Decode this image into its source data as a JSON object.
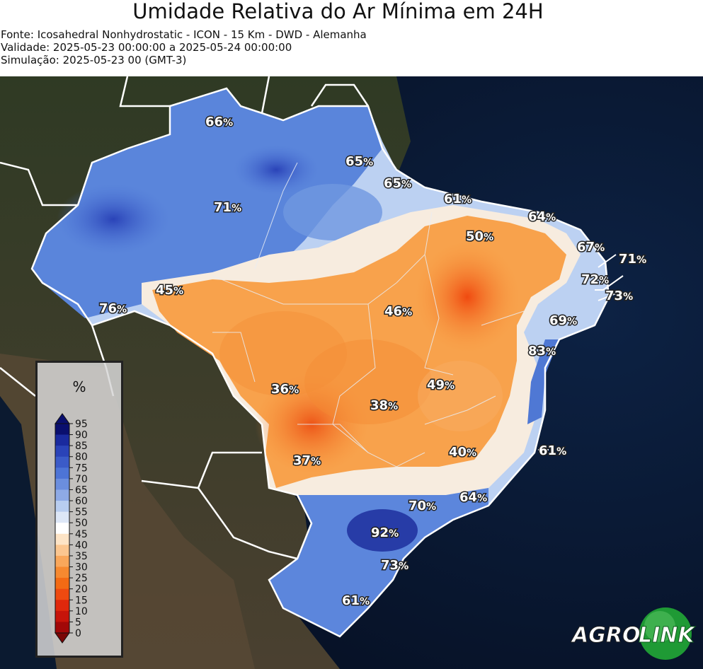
{
  "title": "Umidade Relativa do Ar Mínima em 24H",
  "source": "Fonte: Icosahedral Nonhydrostatic - ICON - 15 Km - DWD - Alemanha",
  "validity": "Validade: 2025-05-23 00:00:00 a 2025-05-24 00:00:00",
  "simulation": "Simulação: 2025-05-23 00 (GMT-3)",
  "legend": {
    "unit": "%",
    "ticks": [
      "95",
      "90",
      "85",
      "80",
      "75",
      "70",
      "65",
      "60",
      "55",
      "50",
      "45",
      "40",
      "35",
      "30",
      "25",
      "20",
      "15",
      "10",
      "5",
      "0"
    ]
  },
  "labels": [
    {
      "value": "66",
      "unit": "%"
    },
    {
      "value": "65",
      "unit": "%"
    },
    {
      "value": "65",
      "unit": "%"
    },
    {
      "value": "61",
      "unit": "%"
    },
    {
      "value": "64",
      "unit": "%"
    },
    {
      "value": "71",
      "unit": "%"
    },
    {
      "value": "50",
      "unit": "%"
    },
    {
      "value": "67",
      "unit": "%"
    },
    {
      "value": "71",
      "unit": "%"
    },
    {
      "value": "72",
      "unit": "%"
    },
    {
      "value": "73",
      "unit": "%"
    },
    {
      "value": "45",
      "unit": "%"
    },
    {
      "value": "76",
      "unit": "%"
    },
    {
      "value": "46",
      "unit": "%"
    },
    {
      "value": "69",
      "unit": "%"
    },
    {
      "value": "83",
      "unit": "%"
    },
    {
      "value": "36",
      "unit": "%"
    },
    {
      "value": "49",
      "unit": "%"
    },
    {
      "value": "38",
      "unit": "%"
    },
    {
      "value": "40",
      "unit": "%"
    },
    {
      "value": "61",
      "unit": "%"
    },
    {
      "value": "37",
      "unit": "%"
    },
    {
      "value": "70",
      "unit": "%"
    },
    {
      "value": "64",
      "unit": "%"
    },
    {
      "value": "92",
      "unit": "%"
    },
    {
      "value": "73",
      "unit": "%"
    },
    {
      "value": "61",
      "unit": "%"
    }
  ],
  "logo": {
    "part1": "AGRO",
    "part2": "LINK"
  }
}
